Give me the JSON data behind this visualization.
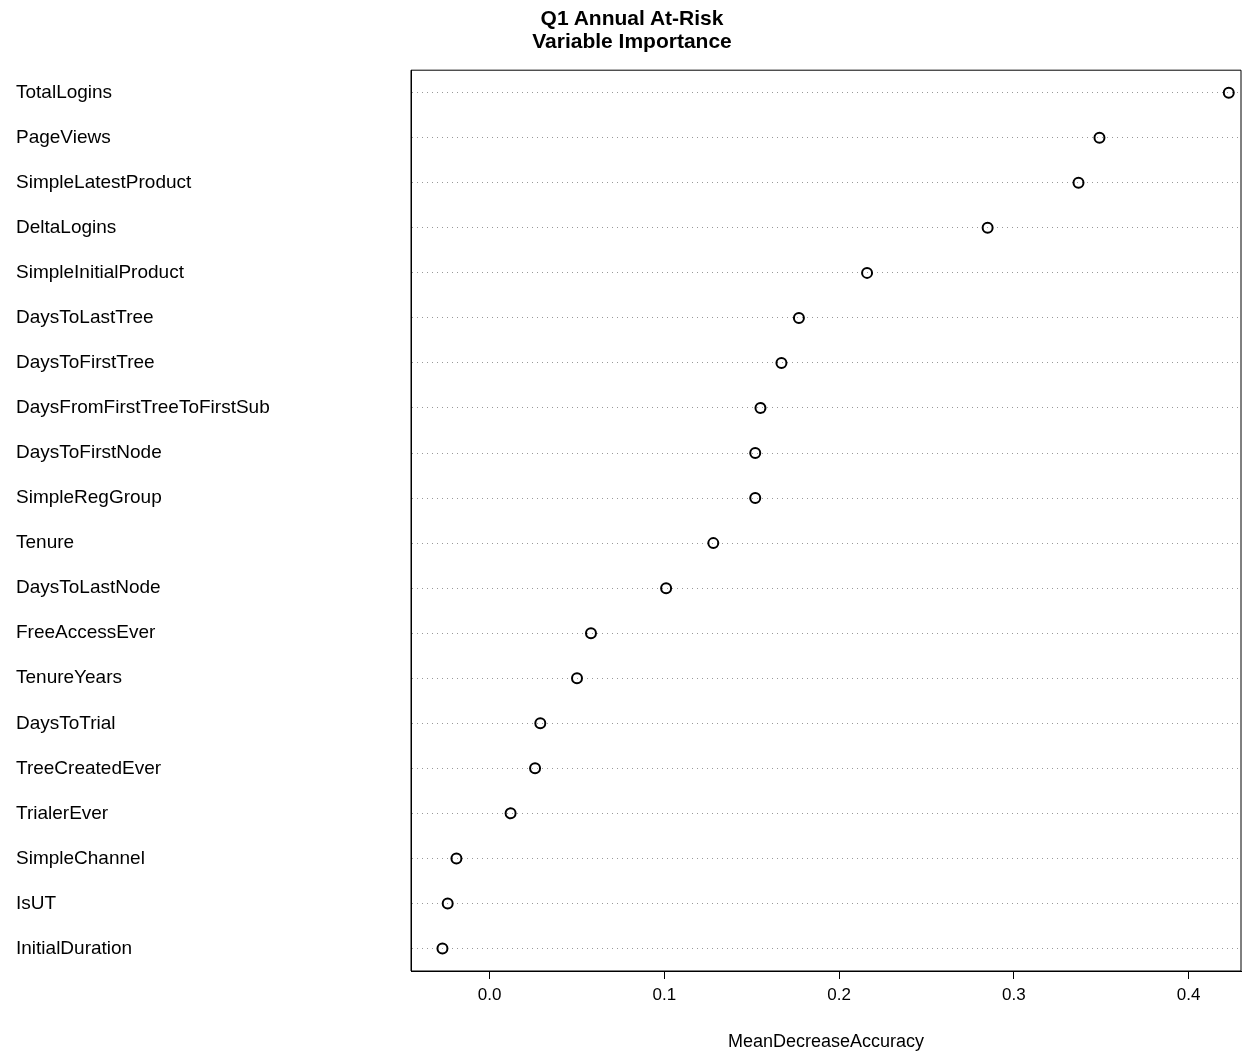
{
  "chart_data": {
    "type": "scatter",
    "orientation": "horizontal",
    "title": "Q1 Annual At-Risk\nVariable Importance",
    "xlabel": "MeanDecreaseAccuracy",
    "categories": [
      "TotalLogins",
      "PageViews",
      "SimpleLatestProduct",
      "DeltaLogins",
      "SimpleInitialProduct",
      "DaysToLastTree",
      "DaysToFirstTree",
      "DaysFromFirstTreeToFirstSub",
      "DaysToFirstNode",
      "SimpleRegGroup",
      "Tenure",
      "DaysToLastNode",
      "FreeAccessEver",
      "TenureYears",
      "DaysToTrial",
      "TreeCreatedEver",
      "TrialerEver",
      "SimpleChannel",
      "IsUT",
      "InitialDuration"
    ],
    "values": [
      0.423,
      0.349,
      0.337,
      0.285,
      0.216,
      0.177,
      0.167,
      0.155,
      0.152,
      0.152,
      0.128,
      0.101,
      0.058,
      0.05,
      0.029,
      0.026,
      0.012,
      -0.019,
      -0.024,
      -0.027
    ],
    "color": "#000000",
    "marker": "circle",
    "grid": "y",
    "legend": false,
    "xlim": [
      -0.045,
      0.43
    ],
    "xticks": [
      {
        "value": 0,
        "label": "0.0"
      },
      0.1,
      0.2,
      0.3,
      0.4
    ]
  }
}
